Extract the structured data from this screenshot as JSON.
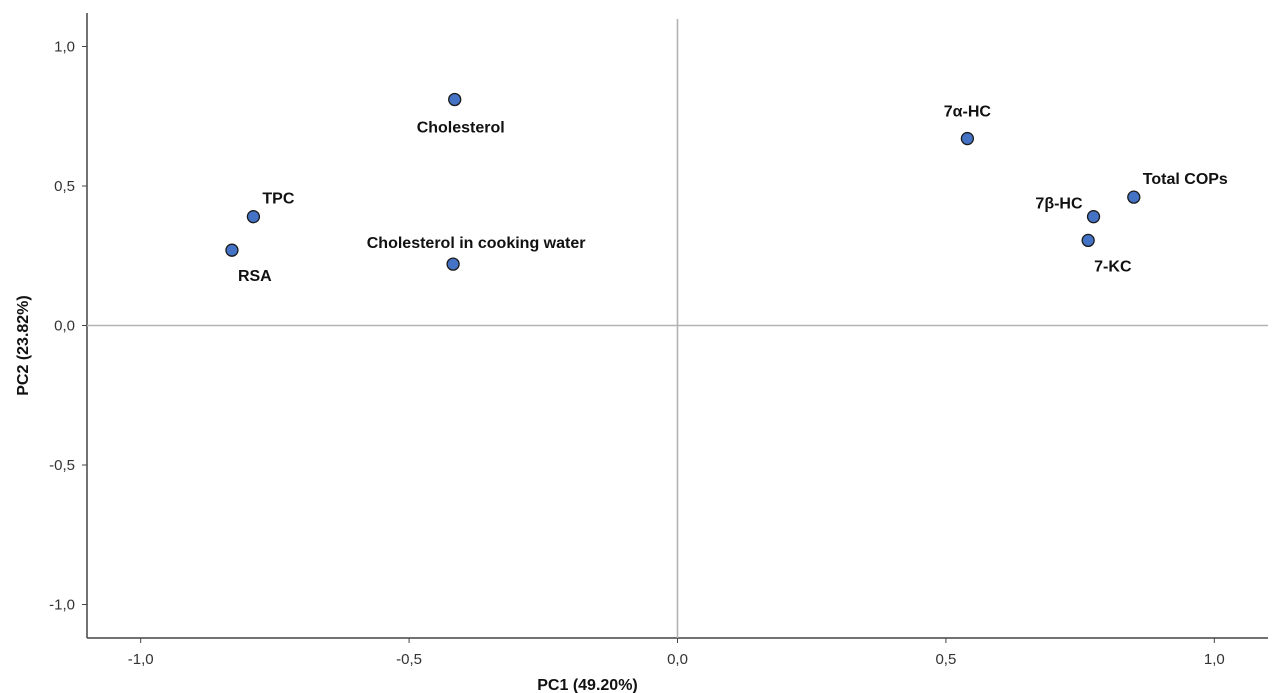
{
  "chart_data": {
    "type": "scatter",
    "xlabel": "PC1 (49.20%)",
    "ylabel": "PC2 (23.82%)",
    "xlim": [
      -1.1,
      1.1
    ],
    "ylim": [
      -1.12,
      1.12
    ],
    "x_ticks": [
      -1.0,
      -0.5,
      0.0,
      0.5,
      1.0
    ],
    "y_ticks": [
      -1.0,
      -0.5,
      0.0,
      0.5,
      1.0
    ],
    "x_tick_labels": [
      "-1,0",
      "-0,5",
      "0,0",
      "0,5",
      "1,0"
    ],
    "y_tick_labels": [
      "-1,0",
      "-0,5",
      "0,0",
      "0,5",
      "1,0"
    ],
    "reference_lines": {
      "x": 0.0,
      "y": 0.0
    },
    "grid": false,
    "marker_color": "#4472c4",
    "marker_edge_color": "#1a1a1a",
    "points": [
      {
        "label": "TPC",
        "x": -0.79,
        "y": 0.39,
        "label_pos": "above-right"
      },
      {
        "label": "RSA",
        "x": -0.83,
        "y": 0.27,
        "label_pos": "below-right"
      },
      {
        "label": "Cholesterol",
        "x": -0.415,
        "y": 0.81,
        "label_pos": "below"
      },
      {
        "label": "Cholesterol in cooking water",
        "x": -0.418,
        "y": 0.22,
        "label_pos": "above-center"
      },
      {
        "label": "7α-HC",
        "x": 0.54,
        "y": 0.67,
        "label_pos": "above"
      },
      {
        "label": "Total COPs",
        "x": 0.85,
        "y": 0.46,
        "label_pos": "above-right"
      },
      {
        "label": "7β-HC",
        "x": 0.775,
        "y": 0.39,
        "label_pos": "left"
      },
      {
        "label": "7-KC",
        "x": 0.765,
        "y": 0.305,
        "label_pos": "below-right"
      }
    ]
  }
}
